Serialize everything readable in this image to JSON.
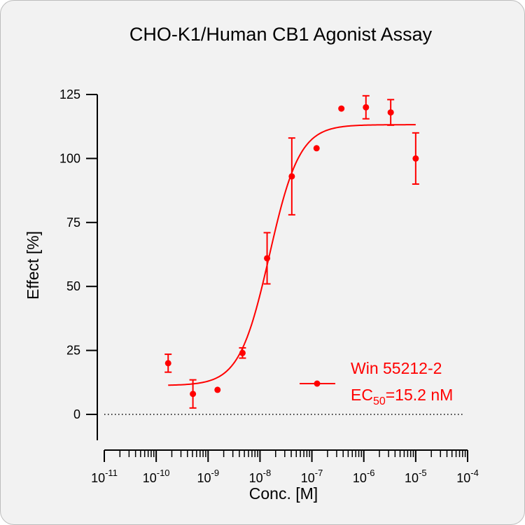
{
  "chart_data": {
    "type": "scatter",
    "title": "CHO-K1/Human CB1 Agonist Assay",
    "xlabel": "Conc. [M]",
    "ylabel": "Effect  [%]",
    "x_scale": "log10",
    "xlim": [
      1e-11,
      0.0001
    ],
    "ylim": [
      -10,
      125
    ],
    "y_ticks": [
      0,
      25,
      50,
      75,
      100,
      125
    ],
    "x_ticks": [
      {
        "base": "10",
        "exp": "-11",
        "value": 1e-11
      },
      {
        "base": "10",
        "exp": "-10",
        "value": 1e-10
      },
      {
        "base": "10",
        "exp": "-9",
        "value": 1e-09
      },
      {
        "base": "10",
        "exp": "-8",
        "value": 1e-08
      },
      {
        "base": "10",
        "exp": "-7",
        "value": 1e-07
      },
      {
        "base": "10",
        "exp": "-6",
        "value": 1e-06
      },
      {
        "base": "10",
        "exp": "-5",
        "value": 1e-05
      },
      {
        "base": "10",
        "exp": "-4",
        "value": 0.0001
      }
    ],
    "reference_line": {
      "y": 0,
      "style": "dotted"
    },
    "grid": false,
    "series": [
      {
        "name": "Win 55212-2",
        "color": "#ff0000",
        "points": [
          {
            "x": 1.7e-10,
            "y": 20,
            "err": 3.5
          },
          {
            "x": 5.1e-10,
            "y": 8,
            "err": 5.5
          },
          {
            "x": 1.52e-09,
            "y": 9.6,
            "err": 0
          },
          {
            "x": 4.6e-09,
            "y": 24,
            "err": 2
          },
          {
            "x": 1.37e-08,
            "y": 61,
            "err": 10
          },
          {
            "x": 4.1e-08,
            "y": 93,
            "err": 15
          },
          {
            "x": 1.23e-07,
            "y": 104,
            "err": 0
          },
          {
            "x": 3.7e-07,
            "y": 119.5,
            "err": 0
          },
          {
            "x": 1.1e-06,
            "y": 120,
            "err": 4.5
          },
          {
            "x": 3.3e-06,
            "y": 118,
            "err": 5
          },
          {
            "x": 1e-05,
            "y": 100,
            "err": 10
          }
        ],
        "fit": {
          "model": "4PL",
          "bottom": 11.3,
          "top": 113.2,
          "ec50": 1.52e-08,
          "hill": 1.5,
          "x_range": [
            1.7e-10,
            1e-05
          ]
        }
      }
    ],
    "legend": {
      "position": "bottom-right",
      "name": "Win 55212-2",
      "ec_prefix": "EC",
      "ec_subscript": "50",
      "ec_value": "=15.2 nM"
    }
  }
}
